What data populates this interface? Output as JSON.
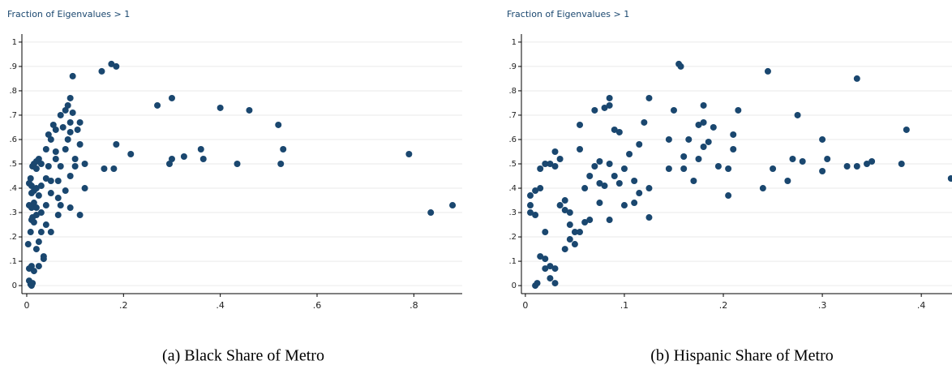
{
  "chart_data": [
    {
      "type": "scatter",
      "title": "Fraction of Eigenvalues > 1",
      "caption": "(a) Black Share of Metro",
      "color": "#1a476f",
      "grid": true,
      "xlim": [
        -0.01,
        0.9
      ],
      "ylim": [
        -0.033,
        1.033
      ],
      "xticks": [
        0,
        {
          "value": 0.2,
          "label": ".2"
        },
        {
          "value": 0.4,
          "label": ".4"
        },
        {
          "value": 0.6,
          "label": ".6"
        },
        {
          "value": 0.8,
          "label": ".8"
        }
      ],
      "yticks": [
        0,
        {
          "value": 0.1,
          "label": ".1"
        },
        {
          "value": 0.2,
          "label": ".2"
        },
        {
          "value": 0.3,
          "label": ".3"
        },
        {
          "value": 0.4,
          "label": ".4"
        },
        {
          "value": 0.5,
          "label": ".5"
        },
        {
          "value": 0.6,
          "label": ".6"
        },
        {
          "value": 0.7,
          "label": ".7"
        },
        {
          "value": 0.8,
          "label": ".8"
        },
        {
          "value": 0.9,
          "label": ".9"
        },
        1
      ],
      "x": [
        0.005,
        0.008,
        0.01,
        0.012,
        0.005,
        0.01,
        0.015,
        0.003,
        0.008,
        0.01,
        0.012,
        0.015,
        0.02,
        0.005,
        0.01,
        0.015,
        0.02,
        0.005,
        0.008,
        0.01,
        0.012,
        0.015,
        0.02,
        0.02,
        0.025,
        0.03,
        0.01,
        0.015,
        0.02,
        0.025,
        0.03,
        0.03,
        0.025,
        0.03,
        0.035,
        0.035,
        0.025,
        0.02,
        0.04,
        0.04,
        0.04,
        0.045,
        0.04,
        0.045,
        0.05,
        0.05,
        0.05,
        0.05,
        0.055,
        0.06,
        0.06,
        0.06,
        0.065,
        0.065,
        0.065,
        0.07,
        0.07,
        0.07,
        0.075,
        0.08,
        0.08,
        0.08,
        0.085,
        0.085,
        0.09,
        0.09,
        0.09,
        0.09,
        0.09,
        0.095,
        0.095,
        0.1,
        0.1,
        0.105,
        0.11,
        0.11,
        0.11,
        0.12,
        0.12,
        0.155,
        0.16,
        0.175,
        0.18,
        0.185,
        0.185,
        0.215,
        0.27,
        0.295,
        0.3,
        0.3,
        0.325,
        0.36,
        0.365,
        0.4,
        0.435,
        0.46,
        0.52,
        0.525,
        0.53,
        0.79,
        0.835,
        0.88
      ],
      "values": [
        0.02,
        0.005,
        0.0,
        0.01,
        0.07,
        0.08,
        0.06,
        0.17,
        0.22,
        0.27,
        0.28,
        0.26,
        0.29,
        0.33,
        0.32,
        0.34,
        0.32,
        0.42,
        0.44,
        0.41,
        0.49,
        0.5,
        0.48,
        0.51,
        0.52,
        0.5,
        0.38,
        0.39,
        0.4,
        0.37,
        0.3,
        0.41,
        0.18,
        0.22,
        0.12,
        0.11,
        0.08,
        0.15,
        0.25,
        0.33,
        0.44,
        0.49,
        0.56,
        0.62,
        0.6,
        0.38,
        0.43,
        0.22,
        0.66,
        0.64,
        0.52,
        0.55,
        0.43,
        0.36,
        0.29,
        0.7,
        0.49,
        0.33,
        0.65,
        0.72,
        0.56,
        0.39,
        0.74,
        0.6,
        0.77,
        0.67,
        0.63,
        0.45,
        0.32,
        0.86,
        0.71,
        0.52,
        0.49,
        0.64,
        0.67,
        0.58,
        0.29,
        0.5,
        0.4,
        0.88,
        0.48,
        0.91,
        0.48,
        0.9,
        0.58,
        0.54,
        0.74,
        0.5,
        0.52,
        0.77,
        0.53,
        0.56,
        0.52,
        0.73,
        0.5,
        0.72,
        0.66,
        0.5,
        0.56,
        0.54,
        0.3,
        0.33
      ]
    },
    {
      "type": "scatter",
      "title": "Fraction of Eigenvalues > 1",
      "caption": "(b) Hispanic Share of Metro",
      "color": "#1a476f",
      "grid": true,
      "xlim": [
        -0.004,
        0.431
      ],
      "ylim": [
        -0.033,
        1.033
      ],
      "xticks": [
        0,
        {
          "value": 0.1,
          "label": ".1"
        },
        {
          "value": 0.2,
          "label": ".2"
        },
        {
          "value": 0.3,
          "label": ".3"
        },
        {
          "value": 0.4,
          "label": ".4"
        }
      ],
      "yticks": [
        0,
        {
          "value": 0.1,
          "label": ".1"
        },
        {
          "value": 0.2,
          "label": ".2"
        },
        {
          "value": 0.3,
          "label": ".3"
        },
        {
          "value": 0.4,
          "label": ".4"
        },
        {
          "value": 0.5,
          "label": ".5"
        },
        {
          "value": 0.6,
          "label": ".6"
        },
        {
          "value": 0.7,
          "label": ".7"
        },
        {
          "value": 0.8,
          "label": ".8"
        },
        {
          "value": 0.9,
          "label": ".9"
        },
        1
      ],
      "x": [
        0.01,
        0.012,
        0.015,
        0.02,
        0.02,
        0.025,
        0.03,
        0.025,
        0.03,
        0.005,
        0.005,
        0.005,
        0.01,
        0.01,
        0.015,
        0.02,
        0.015,
        0.02,
        0.025,
        0.03,
        0.03,
        0.035,
        0.035,
        0.04,
        0.04,
        0.045,
        0.045,
        0.04,
        0.045,
        0.05,
        0.05,
        0.055,
        0.055,
        0.055,
        0.06,
        0.06,
        0.065,
        0.065,
        0.07,
        0.07,
        0.075,
        0.075,
        0.075,
        0.08,
        0.08,
        0.085,
        0.085,
        0.085,
        0.085,
        0.09,
        0.09,
        0.095,
        0.095,
        0.1,
        0.1,
        0.105,
        0.11,
        0.11,
        0.115,
        0.115,
        0.12,
        0.125,
        0.125,
        0.125,
        0.145,
        0.145,
        0.15,
        0.155,
        0.157,
        0.16,
        0.16,
        0.165,
        0.17,
        0.175,
        0.175,
        0.18,
        0.18,
        0.18,
        0.185,
        0.19,
        0.195,
        0.205,
        0.205,
        0.21,
        0.21,
        0.215,
        0.24,
        0.245,
        0.25,
        0.265,
        0.27,
        0.275,
        0.28,
        0.3,
        0.3,
        0.305,
        0.325,
        0.335,
        0.335,
        0.345,
        0.35,
        0.38,
        0.385,
        0.43
      ],
      "values": [
        0.0,
        0.01,
        0.12,
        0.11,
        0.07,
        0.08,
        0.07,
        0.03,
        0.01,
        0.3,
        0.33,
        0.37,
        0.39,
        0.29,
        0.4,
        0.22,
        0.48,
        0.5,
        0.5,
        0.49,
        0.55,
        0.52,
        0.33,
        0.31,
        0.35,
        0.3,
        0.25,
        0.15,
        0.19,
        0.17,
        0.22,
        0.22,
        0.56,
        0.66,
        0.26,
        0.4,
        0.27,
        0.45,
        0.72,
        0.49,
        0.51,
        0.42,
        0.34,
        0.73,
        0.41,
        0.77,
        0.74,
        0.5,
        0.27,
        0.64,
        0.45,
        0.63,
        0.42,
        0.33,
        0.48,
        0.54,
        0.43,
        0.34,
        0.58,
        0.38,
        0.67,
        0.77,
        0.28,
        0.4,
        0.6,
        0.48,
        0.72,
        0.91,
        0.9,
        0.53,
        0.48,
        0.6,
        0.43,
        0.52,
        0.66,
        0.74,
        0.67,
        0.57,
        0.59,
        0.65,
        0.49,
        0.48,
        0.37,
        0.62,
        0.56,
        0.72,
        0.4,
        0.88,
        0.48,
        0.43,
        0.52,
        0.7,
        0.51,
        0.6,
        0.47,
        0.52,
        0.49,
        0.85,
        0.49,
        0.5,
        0.51,
        0.5,
        0.64,
        0.44
      ]
    }
  ]
}
